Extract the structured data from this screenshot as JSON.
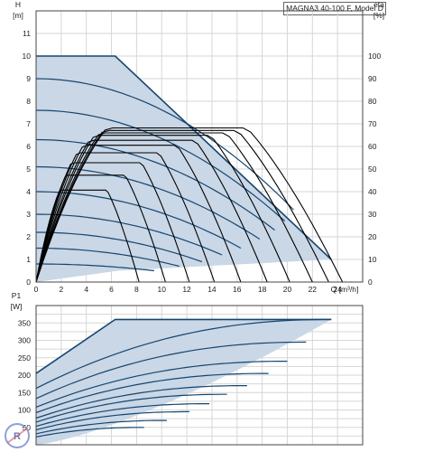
{
  "model_label": "MAGNA3 40-100 F, Model D",
  "chart_data": [
    {
      "type": "line",
      "name": "head-curves",
      "xlabel": "Q [m³/h]",
      "ylabel_top": "H",
      "ylabel_unit": "[m]",
      "y2label_top": "eta",
      "y2label_unit": "[%]",
      "xlim": [
        0,
        26
      ],
      "ylim": [
        0,
        12
      ],
      "y2lim": [
        0,
        120
      ],
      "x_ticks": [
        0,
        2,
        4,
        6,
        8,
        10,
        12,
        14,
        16,
        18,
        20,
        22,
        24
      ],
      "y_ticks": [
        0,
        1,
        2,
        3,
        4,
        5,
        6,
        7,
        8,
        9,
        10,
        11
      ],
      "y2_ticks": [
        0,
        10,
        20,
        30,
        40,
        50,
        60,
        70,
        80,
        90,
        100
      ],
      "grid": true,
      "envelope_fill": "#c9d7e6",
      "curve_color": "#16456f",
      "envelope": {
        "x": [
          0,
          6.3,
          23.5,
          6.5,
          0
        ],
        "y": [
          10,
          10,
          1,
          0.5,
          0
        ]
      },
      "series": [
        {
          "peak": 9.0,
          "end": [
            20.5,
            3.2
          ]
        },
        {
          "peak": 7.6,
          "end": [
            19.8,
            2.7
          ]
        },
        {
          "peak": 6.3,
          "end": [
            19.0,
            2.3
          ]
        },
        {
          "peak": 5.1,
          "end": [
            17.8,
            1.9
          ]
        },
        {
          "peak": 4.0,
          "end": [
            16.3,
            1.5
          ]
        },
        {
          "peak": 3.0,
          "end": [
            14.8,
            1.2
          ]
        },
        {
          "peak": 2.2,
          "end": [
            13.2,
            0.9
          ]
        },
        {
          "peak": 1.5,
          "end": [
            11.4,
            0.7
          ]
        },
        {
          "peak": 0.8,
          "end": [
            9.4,
            0.5
          ]
        }
      ],
      "efficiency_color": "#000000",
      "efficiency": [
        {
          "end": 8.2,
          "peak": 37
        },
        {
          "end": 10.3,
          "peak": 43
        },
        {
          "end": 12.2,
          "peak": 48
        },
        {
          "end": 14.2,
          "peak": 52
        },
        {
          "end": 16.3,
          "peak": 55
        },
        {
          "end": 18.4,
          "peak": 57
        },
        {
          "end": 20.2,
          "peak": 59
        },
        {
          "end": 22.0,
          "peak": 60
        },
        {
          "end": 23.3,
          "peak": 61
        },
        {
          "end": 24.4,
          "peak": 62
        }
      ]
    },
    {
      "type": "line",
      "name": "power-curves",
      "ylabel_top": "P1",
      "ylabel_unit": "[W]",
      "xlim": [
        0,
        26
      ],
      "ylim": [
        0,
        400
      ],
      "y_ticks": [
        50,
        100,
        150,
        200,
        250,
        300,
        350
      ],
      "grid": true,
      "envelope": {
        "x": [
          0,
          6.3,
          23.5,
          23.5,
          14,
          5,
          0
        ],
        "y": [
          205,
          360,
          360,
          330,
          130,
          55,
          0
        ]
      },
      "series": [
        {
          "level": 360,
          "x_end": 23.5
        },
        {
          "level": 295,
          "x_end": 21.5
        },
        {
          "level": 240,
          "x_end": 20.0
        },
        {
          "level": 205,
          "x_end": 18.5
        },
        {
          "level": 170,
          "x_end": 16.8
        },
        {
          "level": 145,
          "x_end": 15.2
        },
        {
          "level": 118,
          "x_end": 13.8
        },
        {
          "level": 95,
          "x_end": 12.2
        },
        {
          "level": 70,
          "x_end": 10.4
        },
        {
          "level": 50,
          "x_end": 8.6
        }
      ]
    }
  ]
}
